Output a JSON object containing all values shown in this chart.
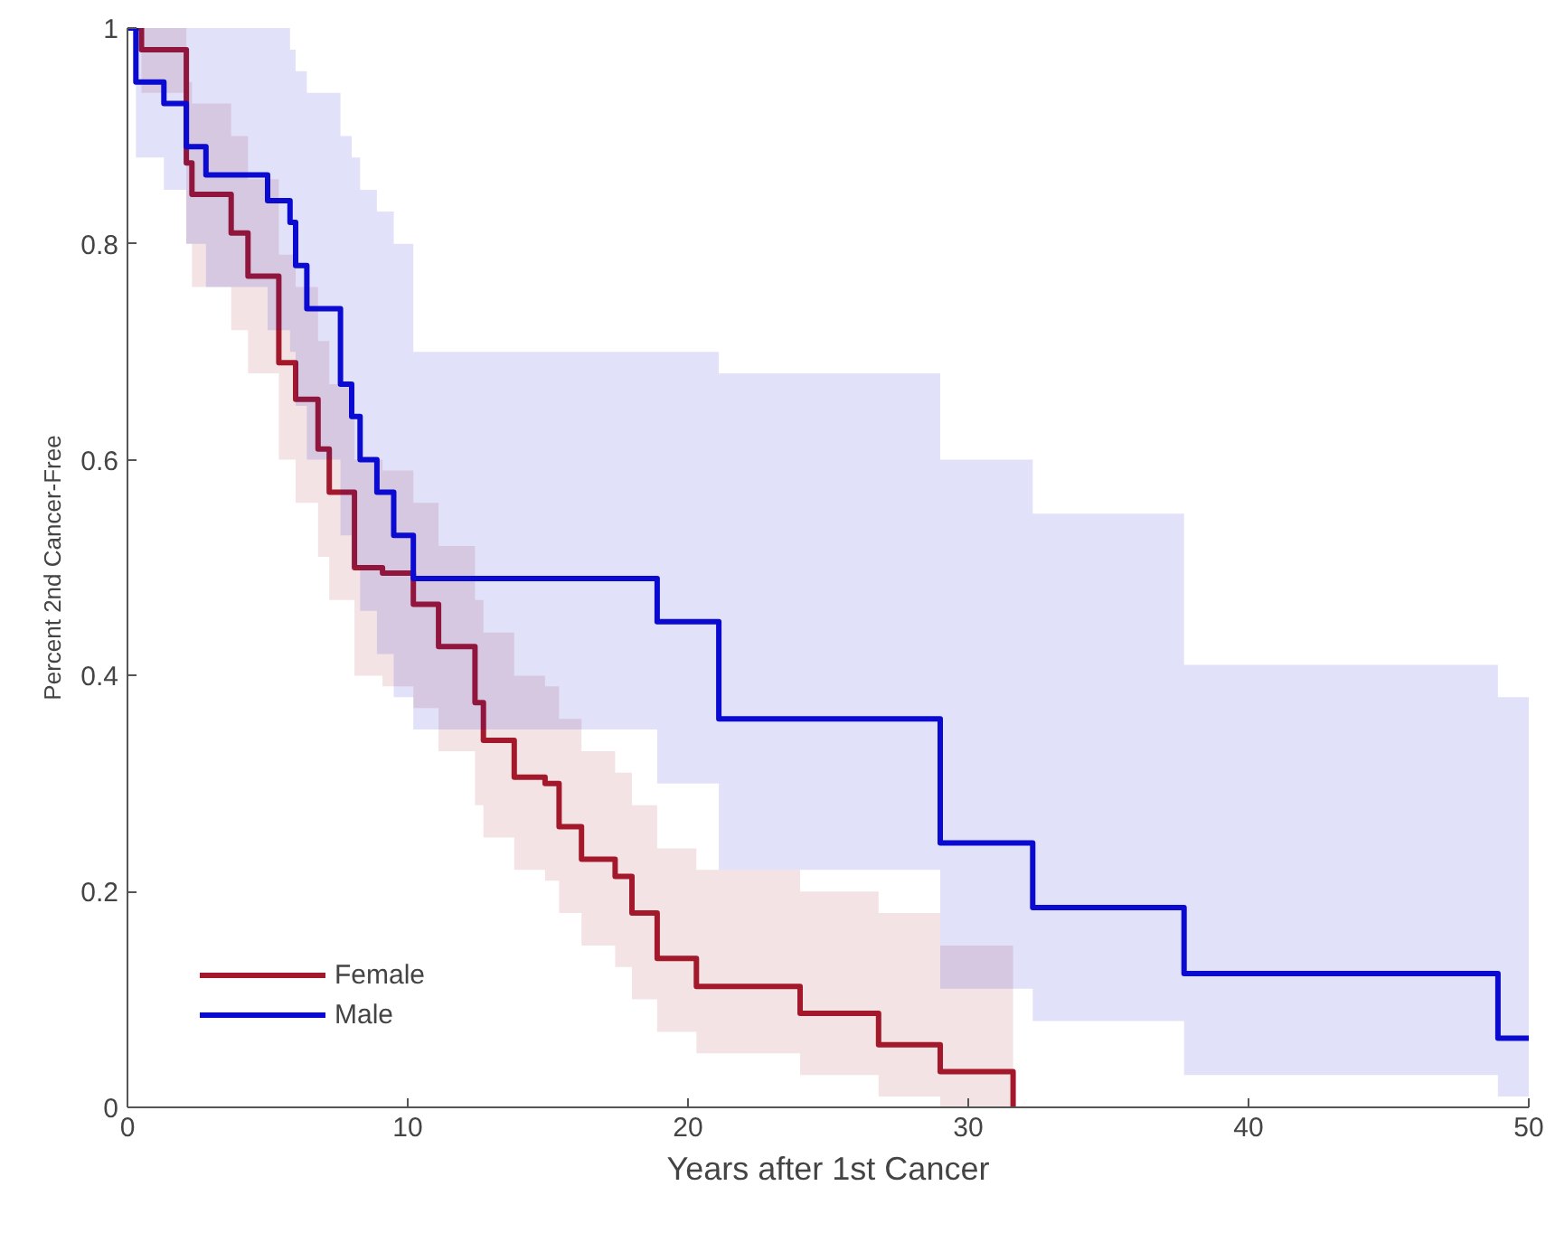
{
  "chart_data": {
    "type": "step",
    "xlabel": "Years after 1st Cancer",
    "ylabel": "Percent 2nd Cancer-Free",
    "xlim": [
      0,
      50
    ],
    "ylim": [
      0,
      1
    ],
    "xticks": [
      0,
      10,
      20,
      30,
      40,
      50
    ],
    "yticks": [
      0,
      0.2,
      0.4,
      0.6,
      0.8,
      1
    ],
    "grid": false,
    "legend": "bottom left",
    "series": [
      {
        "name": "Female",
        "color": "#a3192b",
        "x": [
          0,
          0.5,
          2.1,
          2.3,
          3.7,
          4.3,
          5.4,
          6.0,
          6.8,
          7.2,
          8.1,
          9.1,
          10.2,
          11.1,
          12.4,
          12.7,
          13.8,
          14.9,
          15.4,
          16.2,
          17.4,
          18.0,
          18.9,
          20.3,
          24.0,
          26.8,
          29.0,
          31.6
        ],
        "values": [
          1,
          0.98,
          0.875,
          0.846,
          0.81,
          0.77,
          0.69,
          0.656,
          0.61,
          0.57,
          0.5,
          0.495,
          0.466,
          0.427,
          0.375,
          0.34,
          0.306,
          0.3,
          0.26,
          0.23,
          0.214,
          0.18,
          0.138,
          0.112,
          0.087,
          0.058,
          0.033,
          0
        ],
        "upper": [
          1,
          1,
          0.95,
          0.93,
          0.9,
          0.86,
          0.79,
          0.76,
          0.71,
          0.67,
          0.6,
          0.59,
          0.56,
          0.52,
          0.47,
          0.44,
          0.4,
          0.39,
          0.36,
          0.33,
          0.31,
          0.28,
          0.24,
          0.22,
          0.2,
          0.18,
          0.15,
          0.15
        ],
        "lower": [
          1,
          0.94,
          0.8,
          0.76,
          0.72,
          0.68,
          0.6,
          0.56,
          0.51,
          0.47,
          0.4,
          0.39,
          0.37,
          0.33,
          0.28,
          0.25,
          0.22,
          0.21,
          0.18,
          0.15,
          0.13,
          0.1,
          0.07,
          0.05,
          0.03,
          0.01,
          0,
          0
        ]
      },
      {
        "name": "Male",
        "color": "#0a0ad0",
        "x": [
          0,
          0.3,
          1.3,
          2.1,
          2.8,
          5.0,
          5.8,
          6.0,
          6.4,
          7.6,
          8.0,
          8.3,
          8.9,
          9.5,
          10.2,
          18.9,
          21.1,
          29.0,
          32.3,
          37.7,
          48.9,
          50
        ],
        "values": [
          1,
          0.95,
          0.93,
          0.89,
          0.864,
          0.84,
          0.82,
          0.78,
          0.74,
          0.67,
          0.64,
          0.6,
          0.57,
          0.53,
          0.49,
          0.45,
          0.36,
          0.245,
          0.185,
          0.124,
          0.064,
          0.064
        ],
        "upper": [
          1,
          1,
          1,
          1,
          1,
          1,
          0.98,
          0.96,
          0.94,
          0.9,
          0.88,
          0.85,
          0.83,
          0.8,
          0.7,
          0.7,
          0.68,
          0.6,
          0.55,
          0.41,
          0.38,
          0.38
        ],
        "lower": [
          1,
          0.88,
          0.85,
          0.8,
          0.76,
          0.72,
          0.7,
          0.65,
          0.6,
          0.53,
          0.5,
          0.46,
          0.42,
          0.38,
          0.35,
          0.3,
          0.22,
          0.11,
          0.08,
          0.03,
          0.01,
          0.01
        ]
      }
    ]
  }
}
